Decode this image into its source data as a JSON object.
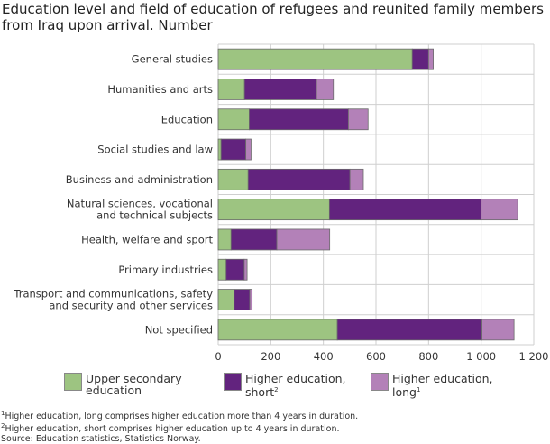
{
  "chart_data": {
    "type": "bar",
    "orientation": "horizontal",
    "stacked": true,
    "title": "Education level and field of education of refugees and reunited family members from Iraq upon arrival. Number",
    "categories": [
      "General studies",
      "Humanities and arts",
      "Education",
      "Social studies and law",
      "Business and administration",
      "Natural sciences, vocational and technical subjects",
      "Health, welfare and sport",
      "Primary industries",
      "Transport and communications, safety and security and other services",
      "Not specified"
    ],
    "category_lines": [
      [
        "General studies"
      ],
      [
        "Humanities and arts"
      ],
      [
        "Education"
      ],
      [
        "Social studies and law"
      ],
      [
        "Business and administration"
      ],
      [
        "Natural sciences, vocational",
        "and technical subjects"
      ],
      [
        "Health, welfare and sport"
      ],
      [
        "Primary industries"
      ],
      [
        "Transport and communications, safety",
        "and security and other services"
      ],
      [
        "Not specified"
      ]
    ],
    "series": [
      {
        "name": "Upper secondary education",
        "legend_lines": [
          "Upper secondary",
          "education"
        ],
        "sup": "",
        "color": "#9dc481",
        "values": [
          738,
          100,
          118,
          11,
          114,
          423,
          49,
          30,
          61,
          453
        ]
      },
      {
        "name": "Higher education, short",
        "legend_lines": [
          "Higher education,",
          "short"
        ],
        "sup": "2",
        "color": "#62237e",
        "values": [
          62,
          274,
          377,
          94,
          387,
          577,
          174,
          69,
          59,
          550
        ]
      },
      {
        "name": "Higher education, long",
        "legend_lines": [
          "Higher education,",
          "long"
        ],
        "sup": "1",
        "color": "#b381b8",
        "values": [
          18,
          64,
          75,
          20,
          51,
          139,
          201,
          11,
          9,
          122
        ]
      }
    ],
    "xlim": [
      0,
      1200
    ],
    "xticks": [
      0,
      200,
      400,
      600,
      800,
      1000,
      1200
    ],
    "xtick_labels": [
      "0",
      "200",
      "400",
      "600",
      "800",
      "1 000",
      "1 200"
    ],
    "grid": true,
    "legend_position": "bottom"
  },
  "notes": [
    {
      "sup": "1",
      "text": "Higher education, long comprises higher education more than 4 years in duration."
    },
    {
      "sup": "2",
      "text": "Higher education, short comprises higher education up to 4 years in duration."
    },
    {
      "sup": "",
      "text": "Source: Education statistics, Statistics Norway."
    }
  ]
}
